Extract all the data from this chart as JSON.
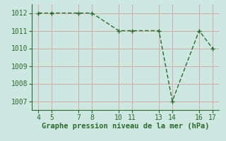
{
  "x": [
    4,
    5,
    7,
    8,
    10,
    11,
    13,
    14,
    16,
    17
  ],
  "y": [
    1012,
    1012,
    1012,
    1012,
    1011,
    1011,
    1011,
    1007,
    1011,
    1010
  ],
  "line_color": "#2d6a2d",
  "marker_color": "#2d6a2d",
  "bg_color": "#cce8e0",
  "grid_color": "#d4aaaa",
  "xlabel": "Graphe pression niveau de la mer (hPa)",
  "xlim": [
    3.5,
    17.5
  ],
  "ylim": [
    1006.5,
    1012.5
  ],
  "yticks": [
    1007,
    1008,
    1009,
    1010,
    1011,
    1012
  ],
  "xticks": [
    4,
    5,
    7,
    8,
    10,
    11,
    13,
    14,
    16,
    17
  ],
  "xlabel_fontsize": 7.5,
  "tick_fontsize": 7,
  "marker_size": 5,
  "line_width": 1.0
}
